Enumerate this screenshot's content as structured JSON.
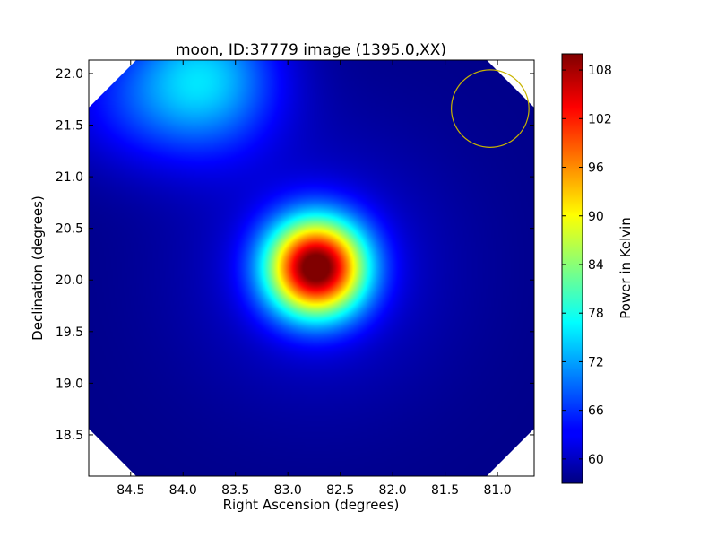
{
  "chart_data": {
    "type": "heatmap",
    "title": "moon, ID:37779 image (1395.0,XX)",
    "xlabel": "Right Ascension (degrees)",
    "ylabel": "Declination (degrees)",
    "xlim": [
      84.9,
      80.65
    ],
    "ylim": [
      18.1,
      22.13
    ],
    "x_ticks": [
      84.5,
      84.0,
      83.5,
      83.0,
      82.5,
      82.0,
      81.5,
      81.0
    ],
    "x_tick_labels": [
      "84.5",
      "84.0",
      "83.5",
      "83.0",
      "82.5",
      "82.0",
      "81.5",
      "81.0"
    ],
    "y_ticks": [
      18.5,
      19.0,
      19.5,
      20.0,
      20.5,
      21.0,
      21.5,
      22.0
    ],
    "y_tick_labels": [
      "18.5",
      "19.0",
      "19.5",
      "20.0",
      "20.5",
      "21.0",
      "21.5",
      "22.0"
    ],
    "colormap": "jet",
    "colorbar": {
      "label": "Power in Kelvin",
      "range": [
        57,
        110
      ],
      "ticks": [
        60,
        66,
        72,
        78,
        84,
        90,
        96,
        102,
        108
      ],
      "tick_labels": [
        "60",
        "66",
        "72",
        "78",
        "84",
        "90",
        "96",
        "102",
        "108"
      ]
    },
    "background_level": 57.5,
    "features": [
      {
        "name": "moon",
        "ra": 82.73,
        "dec": 20.12,
        "peak_kelvin": 109,
        "sigma_deg": 0.33
      },
      {
        "name": "diffuse emission",
        "ra": 83.8,
        "dec": 21.95,
        "peak_kelvin": 74,
        "sigma_deg": 0.5
      }
    ],
    "beam_circle": {
      "ra": 81.07,
      "dec": 21.66,
      "radius_deg": 0.37,
      "color": "#c8b400"
    }
  }
}
